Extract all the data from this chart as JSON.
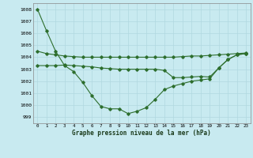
{
  "background_color": "#c8eaf0",
  "grid_color": "#b0d8e0",
  "line_color": "#2d6e2d",
  "ylim": [
    998.5,
    1008.5
  ],
  "yticks": [
    999,
    1000,
    1001,
    1002,
    1003,
    1004,
    1005,
    1006,
    1007,
    1008
  ],
  "xlim": [
    -0.5,
    23.5
  ],
  "xticks": [
    0,
    1,
    2,
    3,
    4,
    5,
    6,
    7,
    8,
    9,
    10,
    11,
    12,
    13,
    14,
    15,
    16,
    17,
    18,
    19,
    20,
    21,
    22,
    23
  ],
  "xlabel": "Graphe pression niveau de la mer (hPa)",
  "series": [
    [
      1008.0,
      1006.2,
      1004.5,
      1003.3,
      1002.8,
      1001.9,
      1000.8,
      999.9,
      999.7,
      999.7,
      999.3,
      999.5,
      999.8,
      1000.5,
      1001.3,
      1001.6,
      1001.8,
      1002.0,
      1002.1,
      1002.2,
      1003.1,
      1003.8,
      1004.2,
      1004.3
    ],
    [
      1004.5,
      1004.3,
      1004.2,
      1004.1,
      1004.05,
      1004.0,
      1004.0,
      1004.0,
      1004.0,
      1004.0,
      1004.0,
      1004.0,
      1004.0,
      1004.0,
      1004.0,
      1004.0,
      1004.05,
      1004.1,
      1004.1,
      1004.15,
      1004.2,
      1004.25,
      1004.3,
      1004.35
    ],
    [
      1003.3,
      1003.3,
      1003.3,
      1003.35,
      1003.3,
      1003.25,
      1003.2,
      1003.1,
      1003.05,
      1003.0,
      1003.0,
      1003.0,
      1003.0,
      1003.0,
      1002.9,
      1002.3,
      1002.3,
      1002.35,
      1002.4,
      1002.35,
      1003.1,
      1003.8,
      1004.2,
      1004.3
    ]
  ]
}
